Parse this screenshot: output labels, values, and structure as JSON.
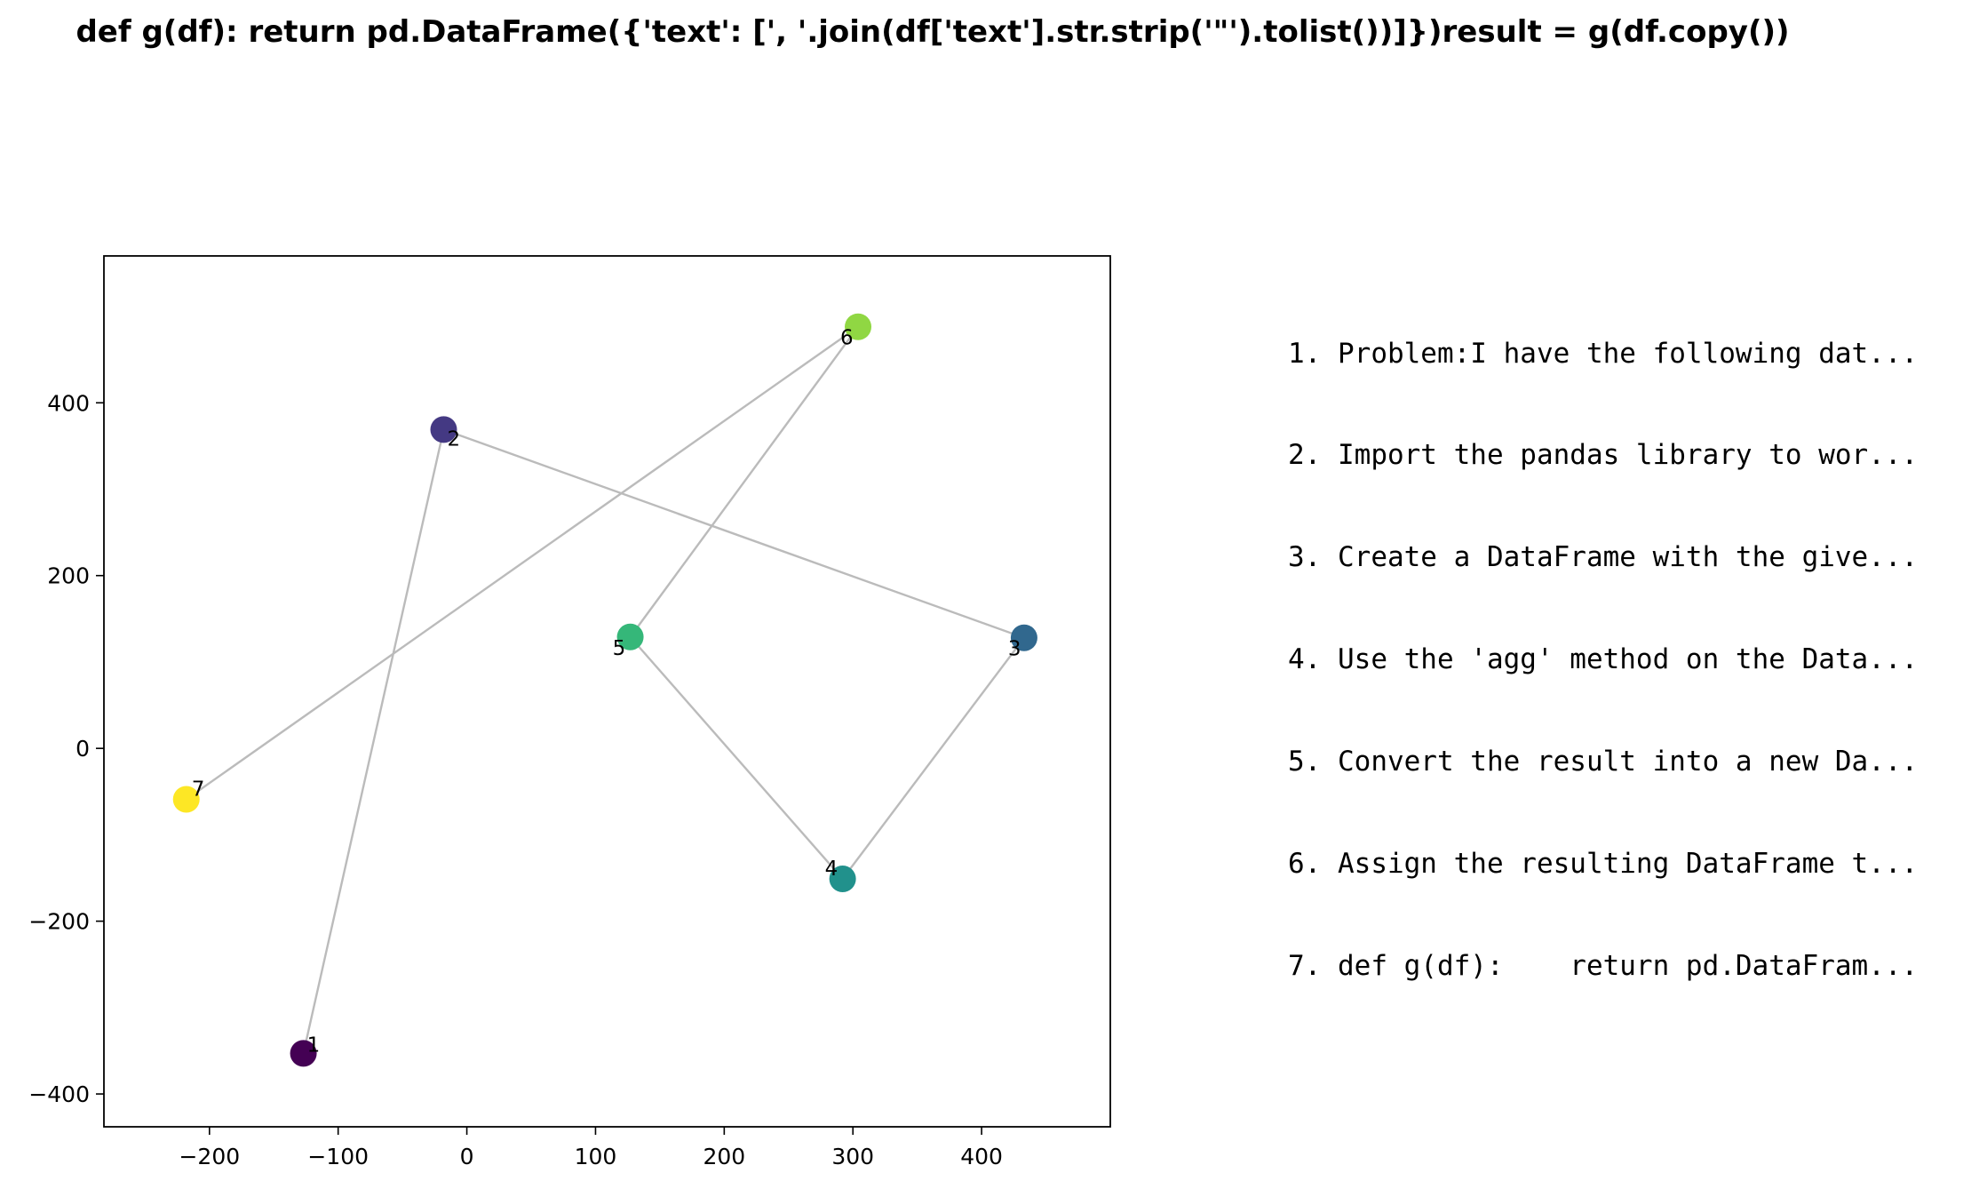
{
  "chart_data": {
    "type": "scatter",
    "title": "def g(df):    return pd.DataFrame({'text': [', '.join(df['text'].str.strip('\"').tolist())]})result = g(df.copy())",
    "xlabel": "",
    "ylabel": "",
    "xlim": [
      -282,
      500
    ],
    "ylim": [
      -438,
      570
    ],
    "xticks": [
      -200,
      -100,
      0,
      100,
      200,
      300,
      400
    ],
    "yticks": [
      -400,
      -200,
      0,
      200,
      400
    ],
    "xtick_labels": [
      "−200",
      "−100",
      "0",
      "100",
      "200",
      "300",
      "400"
    ],
    "ytick_labels": [
      "−400",
      "−200",
      "0",
      "200",
      "400"
    ],
    "grid": false,
    "colormap": "viridis",
    "edge_color": "#bbbbbb",
    "points": [
      {
        "label": "1",
        "x": -127,
        "y": -353,
        "color": "#440154"
      },
      {
        "label": "2",
        "x": -18,
        "y": 369,
        "color": "#443983"
      },
      {
        "label": "3",
        "x": 433,
        "y": 128,
        "color": "#31688e"
      },
      {
        "label": "4",
        "x": 292,
        "y": -151,
        "color": "#21918c"
      },
      {
        "label": "5",
        "x": 127,
        "y": 129,
        "color": "#35b779"
      },
      {
        "label": "6",
        "x": 304,
        "y": 488,
        "color": "#90d743"
      },
      {
        "label": "7",
        "x": -218,
        "y": -59,
        "color": "#fde725"
      }
    ],
    "edges": [
      [
        1,
        2
      ],
      [
        2,
        3
      ],
      [
        3,
        4
      ],
      [
        4,
        5
      ],
      [
        5,
        6
      ],
      [
        6,
        7
      ]
    ]
  },
  "steps": [
    "1. Problem:I have the following dat...",
    "2. Import the pandas library to wor...",
    "3. Create a DataFrame with the give...",
    "4. Use the 'agg' method on the Data...",
    "5. Convert the result into a new Da...",
    "6. Assign the resulting DataFrame t...",
    "7. def g(df):    return pd.DataFram..."
  ]
}
